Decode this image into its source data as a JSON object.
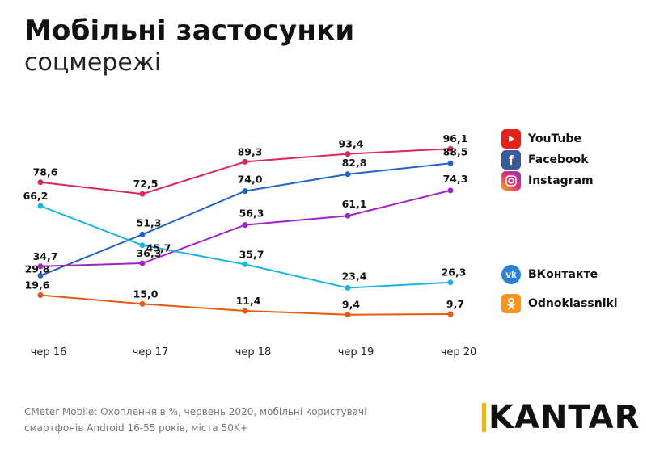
{
  "title": "Мобільні застосунки",
  "subtitle": "соцмережі",
  "chart_data": {
    "type": "line",
    "categories": [
      "чер 16",
      "чер 17",
      "чер 18",
      "чер 19",
      "чер 20"
    ],
    "ylim": [
      0,
      100
    ],
    "grid": false,
    "legend_position": "right",
    "series": [
      {
        "name": "YouTube",
        "color": "#e0245e",
        "values": [
          78.6,
          72.5,
          89.3,
          93.4,
          96.1
        ],
        "labels": [
          "78,6",
          "72,5",
          "89,3",
          "93,4",
          "96,1"
        ]
      },
      {
        "name": "Facebook",
        "color": "#1f63c6",
        "values": [
          29.8,
          51.3,
          74.0,
          82.8,
          88.5
        ],
        "labels": [
          "29,8",
          "51,3",
          "74,0",
          "82,8",
          "88,5"
        ]
      },
      {
        "name": "Instagram",
        "color": "#a321c6",
        "values": [
          34.7,
          36.3,
          56.3,
          61.1,
          74.3
        ],
        "labels": [
          "34,7",
          "36,3",
          "56,3",
          "61,1",
          "74,3"
        ]
      },
      {
        "name": "ВКонтакте",
        "color": "#1ab5e4",
        "values": [
          66.2,
          45.7,
          35.7,
          23.4,
          26.3
        ],
        "labels": [
          "66,2",
          "45,7",
          "35,7",
          "23,4",
          "26,3"
        ]
      },
      {
        "name": "Odnoklassniki",
        "color": "#e8590c",
        "values": [
          19.6,
          15.0,
          11.4,
          9.4,
          9.7
        ],
        "labels": [
          "19,6",
          "15,0",
          "11,4",
          "9,4",
          "9,7"
        ]
      }
    ]
  },
  "legend": [
    {
      "label": "YouTube",
      "icon": "youtube-icon",
      "color": "#e0245e"
    },
    {
      "label": "Facebook",
      "icon": "facebook-icon",
      "color": "#3b5998"
    },
    {
      "label": "Instagram",
      "icon": "instagram-icon",
      "color": "#c13584"
    },
    {
      "label": "ВКонтакте",
      "icon": "vkontakte-icon",
      "color": "#2a82d8"
    },
    {
      "label": "Odnoklassniki",
      "icon": "odnoklassniki-icon",
      "color": "#f7931e"
    }
  ],
  "source": "CMeter Mobile: Охоплення в %, червень 2020, мобільні користувачі смартфонів Android 16-55 років, міста 50K+",
  "logo": "KANTAR"
}
